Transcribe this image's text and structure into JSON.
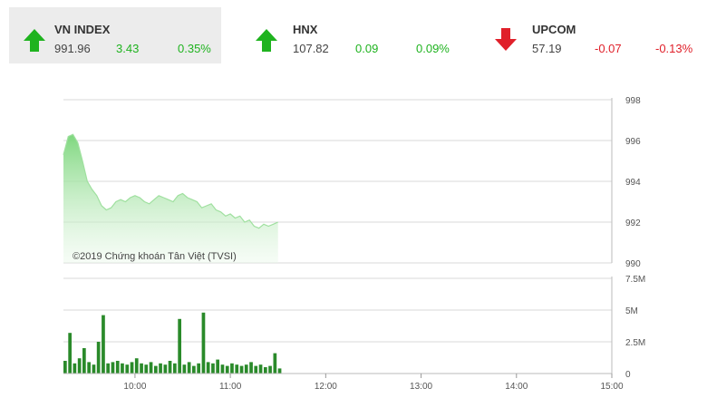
{
  "indices": [
    {
      "name": "VN INDEX",
      "value": "991.96",
      "change": "3.43",
      "percent": "0.35%",
      "direction": "up",
      "color": "#1fb31f"
    },
    {
      "name": "HNX",
      "value": "107.82",
      "change": "0.09",
      "percent": "0.09%",
      "direction": "up",
      "color": "#1fb31f"
    },
    {
      "name": "UPCOM",
      "value": "57.19",
      "change": "-0.07",
      "percent": "-0.13%",
      "direction": "down",
      "color": "#e0202a"
    }
  ],
  "copyright": "©2019 Chứng khoán Tân Việt (TVSI)",
  "chart_data": [
    {
      "type": "area",
      "title": "",
      "ylim": [
        990,
        998
      ],
      "y_ticks": [
        "998",
        "996",
        "994",
        "992",
        "990"
      ],
      "x_ticks": [
        "10:00",
        "11:00",
        "12:00",
        "13:00",
        "14:00",
        "15:00"
      ],
      "grid": true,
      "color": "#7ed77e",
      "x": [
        "09:15",
        "09:18",
        "09:21",
        "09:24",
        "09:27",
        "09:30",
        "09:33",
        "09:36",
        "09:39",
        "09:42",
        "09:45",
        "09:48",
        "09:51",
        "09:54",
        "09:57",
        "10:00",
        "10:03",
        "10:06",
        "10:09",
        "10:12",
        "10:15",
        "10:18",
        "10:21",
        "10:24",
        "10:27",
        "10:30",
        "10:33",
        "10:36",
        "10:39",
        "10:42",
        "10:45",
        "10:48",
        "10:51",
        "10:54",
        "10:57",
        "11:00",
        "11:03",
        "11:06",
        "11:09",
        "11:12",
        "11:15",
        "11:18",
        "11:21",
        "11:24",
        "11:27",
        "11:30"
      ],
      "values": [
        995.3,
        996.2,
        996.3,
        995.9,
        995.0,
        994.0,
        993.6,
        993.3,
        992.8,
        992.6,
        992.7,
        993.0,
        993.1,
        993.0,
        993.2,
        993.3,
        993.2,
        993.0,
        992.9,
        993.1,
        993.3,
        993.2,
        993.1,
        993.0,
        993.3,
        993.4,
        993.2,
        993.1,
        993.0,
        992.7,
        992.8,
        992.9,
        992.6,
        992.5,
        992.3,
        992.4,
        992.2,
        992.3,
        992.0,
        992.1,
        991.8,
        991.7,
        991.9,
        991.8,
        991.9,
        992.0
      ]
    },
    {
      "type": "bar",
      "title": "",
      "ylim": [
        0,
        7.5
      ],
      "y_ticks": [
        "7.5M",
        "5M",
        "2.5M",
        "0"
      ],
      "x_ticks": [
        "10:00",
        "11:00",
        "12:00",
        "13:00",
        "14:00",
        "15:00"
      ],
      "grid": true,
      "color": "#2a8a2a",
      "unit": "M",
      "x": [
        "09:15",
        "09:18",
        "09:21",
        "09:24",
        "09:27",
        "09:30",
        "09:33",
        "09:36",
        "09:39",
        "09:42",
        "09:45",
        "09:48",
        "09:51",
        "09:54",
        "09:57",
        "10:00",
        "10:03",
        "10:06",
        "10:09",
        "10:12",
        "10:15",
        "10:18",
        "10:21",
        "10:24",
        "10:27",
        "10:30",
        "10:33",
        "10:36",
        "10:39",
        "10:42",
        "10:45",
        "10:48",
        "10:51",
        "10:54",
        "10:57",
        "11:00",
        "11:03",
        "11:06",
        "11:09",
        "11:12",
        "11:15",
        "11:18",
        "11:21",
        "11:24",
        "11:27",
        "11:30"
      ],
      "values": [
        1.0,
        3.2,
        0.8,
        1.2,
        2.0,
        0.9,
        0.7,
        2.5,
        4.6,
        0.8,
        0.9,
        1.0,
        0.8,
        0.7,
        0.9,
        1.2,
        0.8,
        0.7,
        0.9,
        0.6,
        0.8,
        0.7,
        1.0,
        0.8,
        4.3,
        0.7,
        0.9,
        0.6,
        0.8,
        4.8,
        0.9,
        0.8,
        1.1,
        0.7,
        0.6,
        0.8,
        0.7,
        0.6,
        0.7,
        0.9,
        0.6,
        0.7,
        0.5,
        0.6,
        1.6,
        0.4
      ]
    }
  ]
}
